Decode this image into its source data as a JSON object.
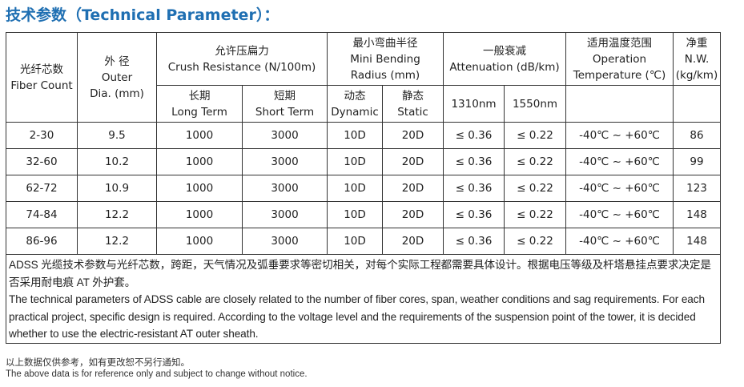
{
  "title": "技术参数（Technical Parameter）：",
  "headers": {
    "fiber_count": [
      "光纤芯数",
      "Fiber Count"
    ],
    "outer_dia": [
      "外 径",
      "Outer",
      "Dia. (mm)"
    ],
    "crush": [
      "允许压扁力",
      "Crush Resistance (N/100m)"
    ],
    "crush_long": [
      "长期",
      "Long Term"
    ],
    "crush_short": [
      "短期",
      "Short Term"
    ],
    "bending": [
      "最小弯曲半径",
      "Mini Bending",
      "Radius (mm)"
    ],
    "bend_dynamic": [
      "动态",
      "Dynamic"
    ],
    "bend_static": [
      "静态",
      "Static"
    ],
    "attenuation": [
      "一般衰减",
      "Attenuation (dB/km)"
    ],
    "att_1310": "1310nm",
    "att_1550": "1550nm",
    "temp": [
      "适用温度范围",
      "Operation",
      "Temperature (℃)"
    ],
    "weight": [
      "净重",
      "N.W.",
      "(kg/km)"
    ]
  },
  "rows": [
    [
      "2-30",
      "9.5",
      "1000",
      "3000",
      "10D",
      "20D",
      "≤ 0.36",
      "≤ 0.22",
      "-40℃ ~ +60℃",
      "86"
    ],
    [
      "32-60",
      "10.2",
      "1000",
      "3000",
      "10D",
      "20D",
      "≤ 0.36",
      "≤ 0.22",
      "-40℃ ~ +60℃",
      "99"
    ],
    [
      "62-72",
      "10.9",
      "1000",
      "3000",
      "10D",
      "20D",
      "≤ 0.36",
      "≤ 0.22",
      "-40℃ ~ +60℃",
      "123"
    ],
    [
      "74-84",
      "12.2",
      "1000",
      "3000",
      "10D",
      "20D",
      "≤ 0.36",
      "≤ 0.22",
      "-40℃ ~ +60℃",
      "148"
    ],
    [
      "86-96",
      "12.2",
      "1000",
      "3000",
      "10D",
      "20D",
      "≤ 0.36",
      "≤ 0.22",
      "-40℃ ~ +60℃",
      "148"
    ]
  ],
  "note_cn": "ADSS 光缆技术参数与光纤芯数，跨距，天气情况及弧垂要求等密切相关，对每个实际工程都需要具体设计。根据电压等级及杆塔悬挂点要求决定是否采用耐电痕 AT 外护套。",
  "note_en": "The technical parameters of ADSS cable are closely related to the number of fiber cores, span, weather conditions and sag requirements. For each practical project, specific design is required. According to the voltage level and the requirements of the suspension point of the tower, it is decided whether to use the electric-resistant AT outer sheath.",
  "footer_cn": "以上数据仅供参考，如有更改恕不另行通知。",
  "footer_en": "The above data is for reference only and subject to change without notice.",
  "colors": {
    "title": "#1f6fb2",
    "border": "#333333"
  }
}
